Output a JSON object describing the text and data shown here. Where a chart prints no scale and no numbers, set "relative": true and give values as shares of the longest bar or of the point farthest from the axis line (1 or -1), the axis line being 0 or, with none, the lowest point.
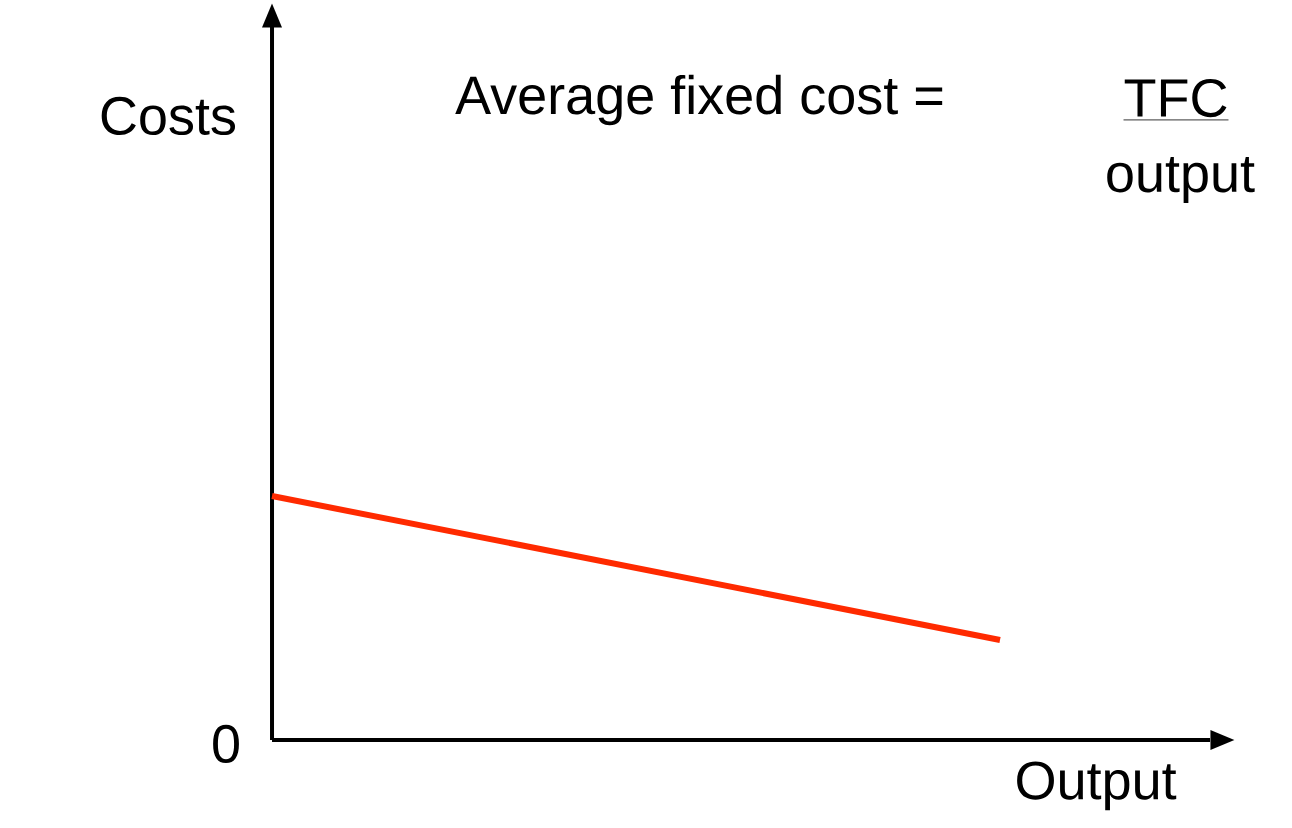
{
  "chart_data": {
    "type": "line",
    "relative": true,
    "categories": [
      null,
      null
    ],
    "xlabel": "Output",
    "annotations": [
      "Average fixed cost =",
      "TFC",
      "output",
      "0",
      "Costs"
    ],
    "series": [
      {
        "color": "#ff2a00",
        "values": [
          1,
          0.41
        ]
      }
    ]
  }
}
